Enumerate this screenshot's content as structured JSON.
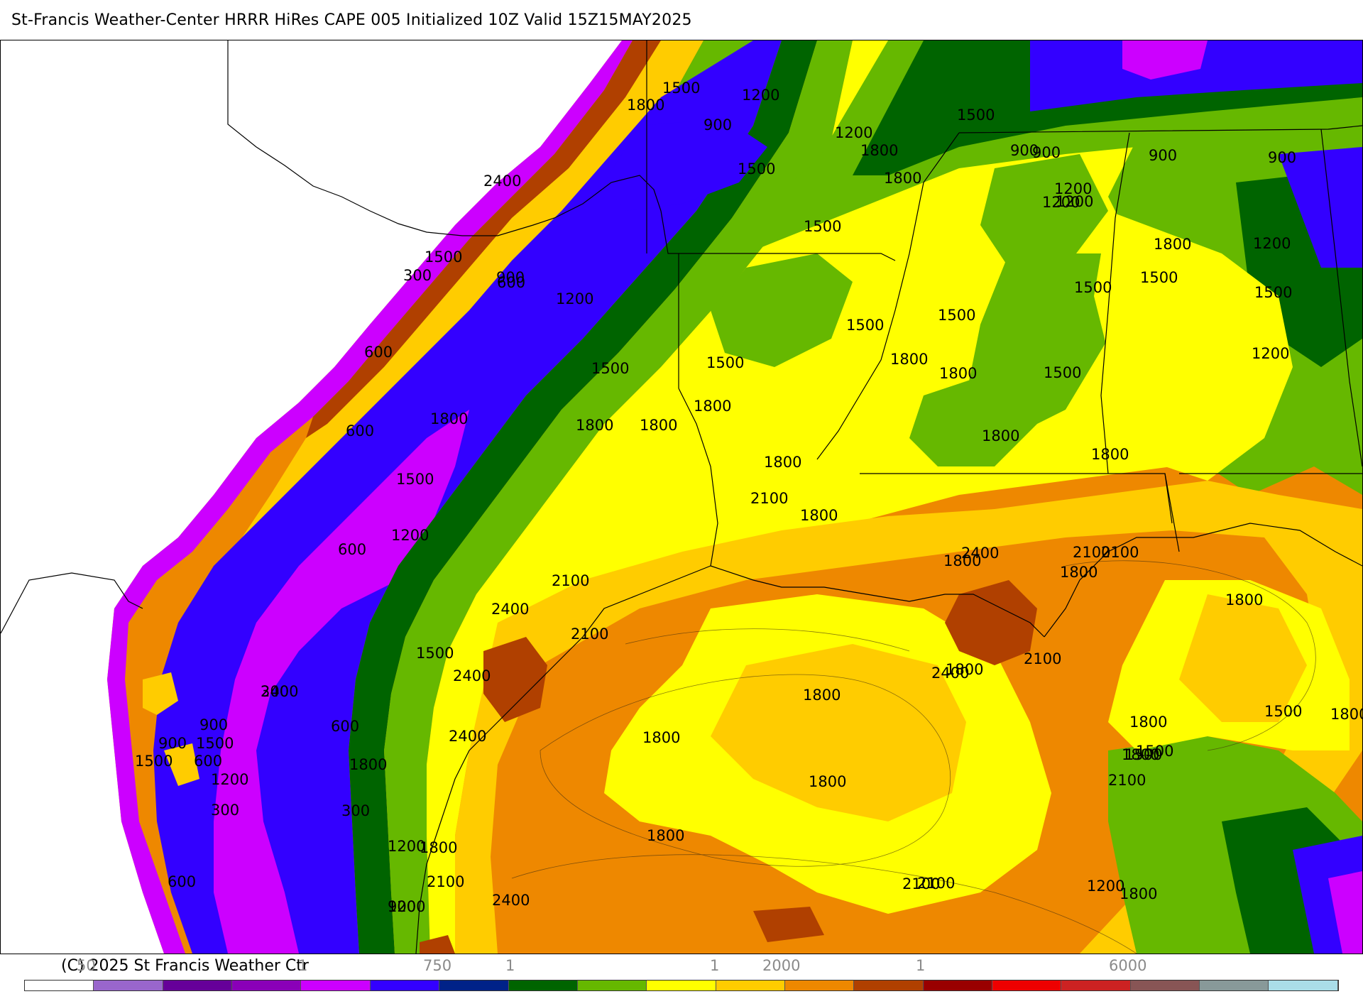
{
  "header": {
    "title": "St-Francis Weather-Center HRRR HiRes CAPE  005 Initialized  10Z Valid 15Z15MAY2025"
  },
  "footer": {
    "copyright": "(C) 2025 St Francis Weather Ctr",
    "scale_ticks": [
      "50",
      "1",
      "750",
      "1",
      "1",
      "2000",
      "1",
      "6000"
    ]
  },
  "legend_colors": [
    "#ffffff",
    "#9966cc",
    "#660099",
    "#8a00b8",
    "#cc00ff",
    "#3300ff",
    "#002288",
    "#006400",
    "#66b800",
    "#ffff00",
    "#ffcc00",
    "#ee8800",
    "#b04000",
    "#990000",
    "#ee0000",
    "#cc2222",
    "#885555",
    "#889999",
    "#aadde8"
  ],
  "map": {
    "contour_labels": [
      "1500",
      "1200",
      "1800",
      "900",
      "1200",
      "1500",
      "1200",
      "1800",
      "1500",
      "1800",
      "2400",
      "1500",
      "300",
      "1500",
      "900",
      "1200",
      "1200",
      "1500",
      "900",
      "900",
      "1200",
      "1800",
      "1500",
      "1500",
      "1800",
      "600",
      "600",
      "1500",
      "1800",
      "1500",
      "1500",
      "1800",
      "1500",
      "1200",
      "1800",
      "900",
      "1200",
      "1500",
      "900",
      "600",
      "1800",
      "1800",
      "1800",
      "2100",
      "1800",
      "1500",
      "1800",
      "1800",
      "1800",
      "1800",
      "300",
      "1500",
      "900",
      "600",
      "1200",
      "1200",
      "2100",
      "2100",
      "2400",
      "2100",
      "2400",
      "2400",
      "1800",
      "2400",
      "2100",
      "1500",
      "1800",
      "2100",
      "1800",
      "1800",
      "1500",
      "600",
      "300",
      "1800",
      "2100",
      "1800",
      "1200",
      "2400",
      "1800",
      "900",
      "2400",
      "300",
      "900",
      "1500",
      "600",
      "2100",
      "1800",
      "1800",
      "1500",
      "1800",
      "1200",
      "1800",
      "2100",
      "2100",
      "1800",
      "1500",
      "600",
      "1200",
      "2400",
      "300"
    ]
  }
}
